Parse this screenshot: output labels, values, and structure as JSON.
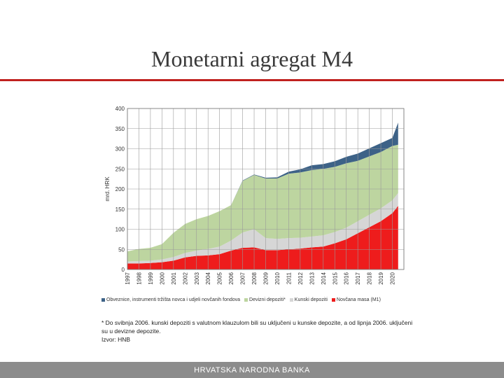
{
  "slide": {
    "title": "Monetarni agregat M4",
    "footnote": "* Do svibnja 2006. kunski depoziti s valutnom klauzulom bili su uključeni u kunske depozite, a od lipnja 2006. uključeni su u devizne depozite.",
    "source": "Izvor: HNB",
    "footer": "HRVATSKA NARODNA BANKA"
  },
  "colors": {
    "obveznice": "#3d6287",
    "devizni": "#bdd5a0",
    "kunski": "#d6d6d6",
    "novcana": "#ee1c1c",
    "title_rule": "#c0211f"
  },
  "chart_data": {
    "type": "area",
    "stacked": true,
    "ylabel": "mrd. HRK",
    "ylim": [
      0,
      400
    ],
    "yticks": [
      "0",
      "50",
      "100",
      "150",
      "200",
      "250",
      "300",
      "350",
      "400"
    ],
    "categories": [
      "1997",
      "1998",
      "1999",
      "2000",
      "2001",
      "2002",
      "2003",
      "2004",
      "2005",
      "2006",
      "2007",
      "2008",
      "2009",
      "2010",
      "2011",
      "2012",
      "2013",
      "2014",
      "2015",
      "2016",
      "2017",
      "2018",
      "2019",
      "2020"
    ],
    "xtick_labels": [
      "1997",
      "1998",
      "1999",
      "2000",
      "2001",
      "2002",
      "2003",
      "2004",
      "2005",
      "2006",
      "2007",
      "2008",
      "2009",
      "2010",
      "2011",
      "2012",
      "2013",
      "2014",
      "2015",
      "2016",
      "2017",
      "2018",
      "2019",
      "2020"
    ],
    "x": [
      1997,
      1998,
      1999,
      2000,
      2001,
      2002,
      2003,
      2004,
      2005,
      2006,
      2007,
      2008,
      2009,
      2010,
      2011,
      2012,
      2013,
      2014,
      2015,
      2016,
      2017,
      2018,
      2019,
      2020,
      2020.5
    ],
    "grid": true,
    "legend_position": "bottom",
    "series": [
      {
        "name": "Novčana masa (M1)",
        "values": [
          15,
          15,
          16,
          18,
          22,
          30,
          34,
          35,
          38,
          47,
          54,
          55,
          48,
          48,
          50,
          52,
          55,
          57,
          65,
          75,
          90,
          105,
          120,
          140,
          158
        ]
      },
      {
        "name": "Kunski depoziti",
        "values": [
          5,
          6,
          6,
          7,
          9,
          11,
          13,
          16,
          19,
          25,
          38,
          45,
          30,
          28,
          28,
          27,
          27,
          28,
          28,
          29,
          30,
          31,
          32,
          32,
          32
        ]
      },
      {
        "name": "Devizni depoziti*",
        "values": [
          25,
          30,
          32,
          38,
          60,
          72,
          78,
          82,
          88,
          88,
          128,
          135,
          148,
          150,
          160,
          162,
          165,
          165,
          162,
          160,
          150,
          145,
          140,
          135,
          120
        ]
      },
      {
        "name": "Obveznice, instrumenti tržišta novca i udjeli novčanih fondova",
        "values": [
          0,
          0,
          0,
          0,
          0,
          0,
          0,
          0,
          0,
          0,
          1,
          1,
          2,
          3,
          5,
          8,
          12,
          12,
          14,
          16,
          18,
          20,
          22,
          20,
          55
        ]
      }
    ]
  }
}
